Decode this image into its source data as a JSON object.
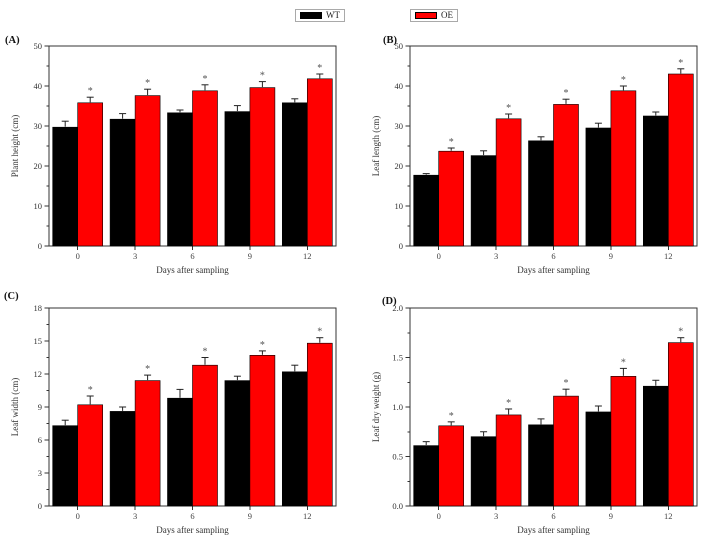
{
  "figure": {
    "legend": {
      "entries": [
        {
          "name": "wild-type",
          "label": "WT",
          "color": "#000000"
        },
        {
          "name": "overexpression",
          "label": "OE",
          "color": "#ff0000"
        }
      ]
    }
  },
  "chart_data": [
    {
      "id": "A",
      "panel_label": "(A)",
      "type": "bar",
      "categories": [
        "0",
        "3",
        "6",
        "9",
        "12"
      ],
      "xlabel": "Days after sampling",
      "ylabel": "Plant height (cm)",
      "ylim": [
        0,
        50
      ],
      "ytick_step": 10,
      "yminor_step": 5,
      "ydecimals": 0,
      "grid": false,
      "legend_position": "top-center-outside",
      "series": [
        {
          "name": "WT",
          "color": "#000000",
          "values": [
            29.7,
            31.7,
            33.3,
            33.6,
            35.8
          ],
          "errors": [
            1.5,
            1.4,
            0.7,
            1.5,
            1.0
          ],
          "sig": [
            "",
            "",
            "",
            "",
            ""
          ]
        },
        {
          "name": "OE",
          "color": "#ff0000",
          "values": [
            35.8,
            37.6,
            38.8,
            39.6,
            41.8
          ],
          "errors": [
            1.4,
            1.6,
            1.5,
            1.5,
            1.2
          ],
          "sig": [
            "*",
            "*",
            "*",
            "*",
            "*"
          ]
        }
      ]
    },
    {
      "id": "B",
      "panel_label": "(B)",
      "type": "bar",
      "categories": [
        "0",
        "3",
        "6",
        "9",
        "12"
      ],
      "xlabel": "Days after sampling",
      "ylabel": "Leaf length (cm)",
      "ylim": [
        0,
        50
      ],
      "ytick_step": 10,
      "yminor_step": 5,
      "ydecimals": 0,
      "grid": false,
      "legend_position": "top-center-outside",
      "series": [
        {
          "name": "WT",
          "color": "#000000",
          "values": [
            17.7,
            22.6,
            26.3,
            29.5,
            32.5
          ],
          "errors": [
            0.4,
            1.2,
            1.0,
            1.2,
            1.0
          ],
          "sig": [
            "",
            "",
            "",
            "",
            ""
          ]
        },
        {
          "name": "OE",
          "color": "#ff0000",
          "values": [
            23.7,
            31.8,
            35.4,
            38.8,
            43.0
          ],
          "errors": [
            0.8,
            1.2,
            1.3,
            1.2,
            1.3
          ],
          "sig": [
            "*",
            "*",
            "*",
            "*",
            "*"
          ]
        }
      ]
    },
    {
      "id": "C",
      "panel_label": "(C)",
      "type": "bar",
      "categories": [
        "0",
        "3",
        "6",
        "9",
        "12"
      ],
      "xlabel": "Days after sampling",
      "ylabel": "Leaf width (cm)",
      "ylim": [
        0,
        18
      ],
      "ytick_step": 3,
      "yminor_step": 1.5,
      "ydecimals": 0,
      "grid": false,
      "legend_position": "top-center-outside",
      "series": [
        {
          "name": "WT",
          "color": "#000000",
          "values": [
            7.3,
            8.6,
            9.8,
            11.4,
            12.2
          ],
          "errors": [
            0.5,
            0.4,
            0.8,
            0.4,
            0.6
          ],
          "sig": [
            "",
            "",
            "",
            "",
            ""
          ]
        },
        {
          "name": "OE",
          "color": "#ff0000",
          "values": [
            9.2,
            11.4,
            12.8,
            13.7,
            14.8
          ],
          "errors": [
            0.8,
            0.5,
            0.7,
            0.4,
            0.5
          ],
          "sig": [
            "*",
            "*",
            "*",
            "*",
            "*"
          ]
        }
      ]
    },
    {
      "id": "D",
      "panel_label": "(D)",
      "type": "bar",
      "categories": [
        "0",
        "3",
        "6",
        "9",
        "12"
      ],
      "xlabel": "Days after sampling",
      "ylabel": "Leaf dry weight (g)",
      "ylim": [
        0,
        2.0
      ],
      "ytick_step": 0.5,
      "yminor_step": 0.25,
      "ydecimals": 1,
      "grid": false,
      "legend_position": "top-center-outside",
      "series": [
        {
          "name": "WT",
          "color": "#000000",
          "values": [
            0.61,
            0.7,
            0.82,
            0.95,
            1.21
          ],
          "errors": [
            0.04,
            0.05,
            0.06,
            0.06,
            0.06
          ],
          "sig": [
            "",
            "",
            "",
            "",
            ""
          ]
        },
        {
          "name": "OE",
          "color": "#ff0000",
          "values": [
            0.81,
            0.92,
            1.11,
            1.31,
            1.65
          ],
          "errors": [
            0.04,
            0.06,
            0.07,
            0.08,
            0.05
          ],
          "sig": [
            "*",
            "*",
            "*",
            "*",
            "*"
          ]
        }
      ]
    }
  ]
}
